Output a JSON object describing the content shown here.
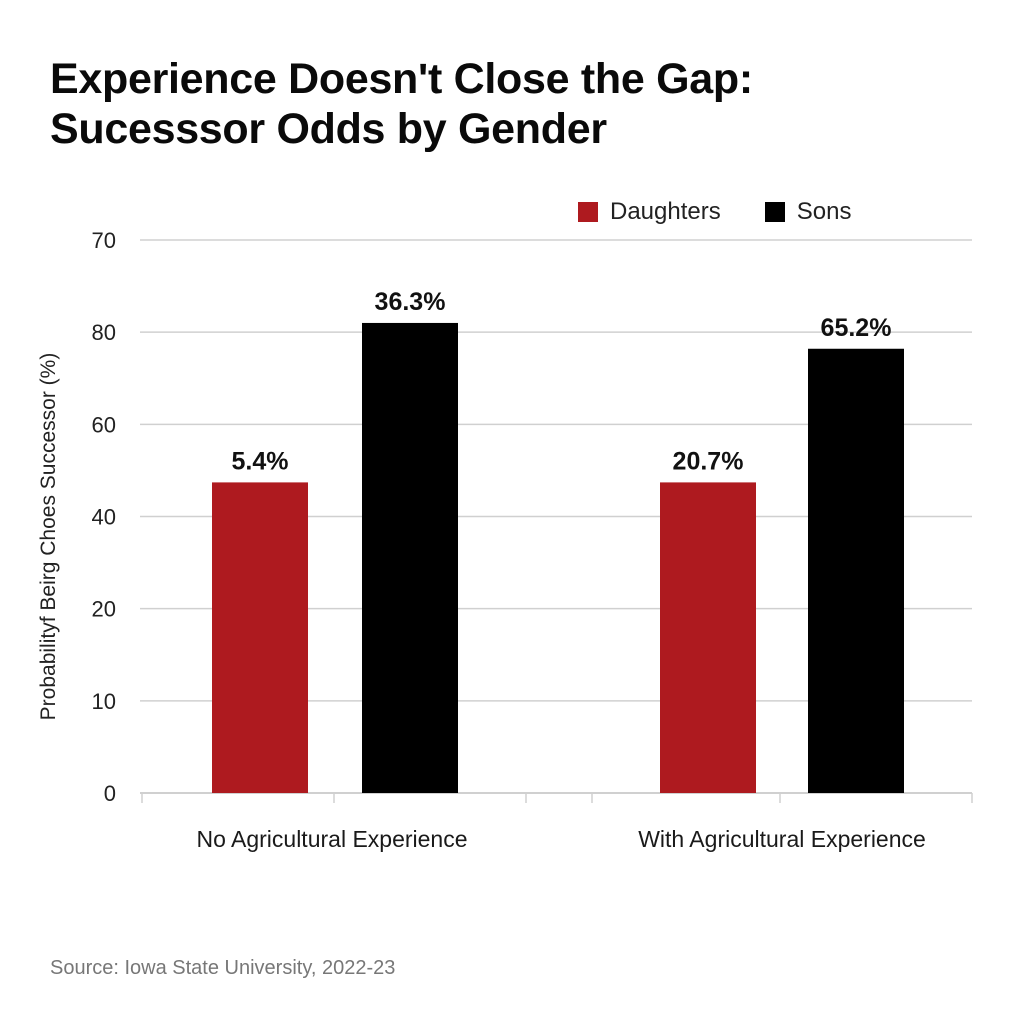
{
  "title_lines": [
    "Experience Doesn't Close the Gap:",
    "Sucesssor Odds by Gender"
  ],
  "source": "Source: Iowa State University, 2022-23",
  "colors": {
    "daughters": "#AE1A1F",
    "sons": "#000000",
    "grid": "#d0d0d0"
  },
  "legend": [
    {
      "label": "Daughters",
      "color": "#AE1A1F"
    },
    {
      "label": "Sons",
      "color": "#000000"
    }
  ],
  "chart_data": {
    "type": "bar",
    "title": "Experience Doesn't Close the Gap: Sucesssor Odds by Gender",
    "xlabel": "",
    "ylabel": "Probabilityf Beirg Choes Successor (%)",
    "y_tick_labels_top_to_bottom": [
      "70",
      "80",
      "60",
      "40",
      "20",
      "10",
      "0"
    ],
    "grid": true,
    "legend_position": "top-right",
    "categories": [
      "No Agricultural Experience",
      "With Agricultural Experience"
    ],
    "series": [
      {
        "name": "Daughters",
        "values": [
          5.4,
          20.7
        ],
        "labels": [
          "5.4%",
          "20.7%"
        ],
        "drawn_level_ticks": [
          3.37,
          3.37
        ]
      },
      {
        "name": "Sons",
        "values": [
          36.3,
          65.2
        ],
        "labels": [
          "36.3%",
          "65.2%"
        ],
        "drawn_level_ticks": [
          5.1,
          4.82
        ]
      }
    ],
    "note": "Y-axis tick labels are non-monotonic as printed; bars drawn at positions measured in tick-index units (0 = bottom tick, 6 = top tick)."
  }
}
